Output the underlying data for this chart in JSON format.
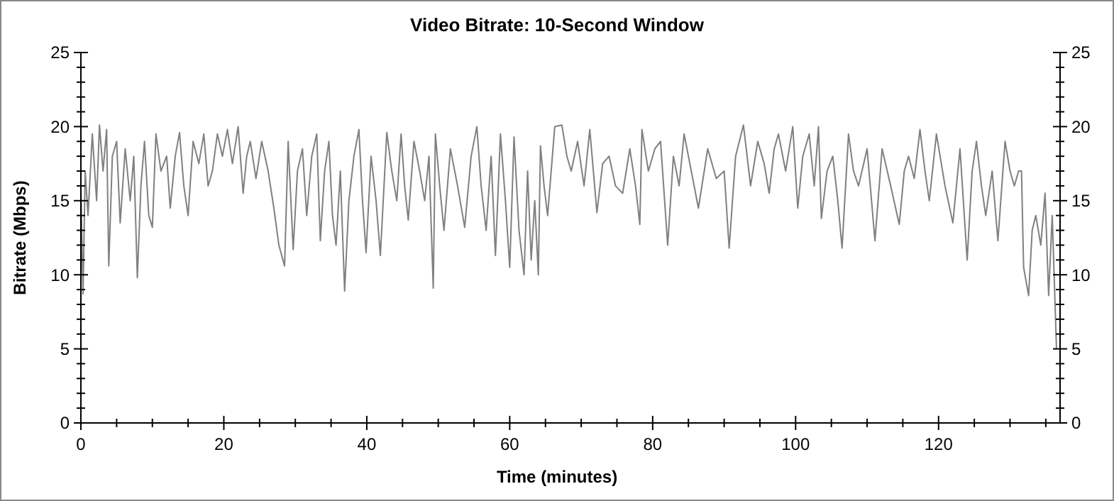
{
  "chart_data": {
    "type": "line",
    "title": "Video Bitrate: 10-Second Window",
    "xlabel": "Time (minutes)",
    "ylabel": "Bitrate (Mbps)",
    "xlim": [
      0,
      137
    ],
    "ylim": [
      0,
      25
    ],
    "y2lim": [
      0,
      25
    ],
    "xticks": [
      0,
      {
        "value": 5,
        "label": null
      },
      {
        "value": 10,
        "label": null
      },
      {
        "value": 15,
        "label": null
      },
      20,
      {
        "value": 25,
        "label": null
      },
      {
        "value": 30,
        "label": null
      },
      {
        "value": 35,
        "label": null
      },
      40,
      {
        "value": 45,
        "label": null
      },
      {
        "value": 50,
        "label": null
      },
      {
        "value": 55,
        "label": null
      },
      60,
      {
        "value": 65,
        "label": null
      },
      {
        "value": 70,
        "label": null
      },
      {
        "value": 75,
        "label": null
      },
      80,
      {
        "value": 85,
        "label": null
      },
      {
        "value": 90,
        "label": null
      },
      {
        "value": 95,
        "label": null
      },
      100,
      {
        "value": 105,
        "label": null
      },
      {
        "value": 110,
        "label": null
      },
      {
        "value": 115,
        "label": null
      },
      120,
      {
        "value": 125,
        "label": null
      },
      {
        "value": 130,
        "label": null
      },
      {
        "value": 135,
        "label": null
      }
    ],
    "yticks": [
      0,
      {
        "value": 1,
        "label": null
      },
      {
        "value": 2,
        "label": null
      },
      {
        "value": 3,
        "label": null
      },
      {
        "value": 4,
        "label": null
      },
      5,
      {
        "value": 6,
        "label": null
      },
      {
        "value": 7,
        "label": null
      },
      {
        "value": 8,
        "label": null
      },
      {
        "value": 9,
        "label": null
      },
      10,
      {
        "value": 11,
        "label": null
      },
      {
        "value": 12,
        "label": null
      },
      {
        "value": 13,
        "label": null
      },
      {
        "value": 14,
        "label": null
      },
      15,
      {
        "value": 16,
        "label": null
      },
      {
        "value": 17,
        "label": null
      },
      {
        "value": 18,
        "label": null
      },
      {
        "value": 19,
        "label": null
      },
      20,
      {
        "value": 21,
        "label": null
      },
      {
        "value": 22,
        "label": null
      },
      {
        "value": 23,
        "label": null
      },
      {
        "value": 24,
        "label": null
      },
      25
    ],
    "y2ticks": [
      0,
      {
        "value": 1,
        "label": null
      },
      {
        "value": 2,
        "label": null
      },
      {
        "value": 3,
        "label": null
      },
      {
        "value": 4,
        "label": null
      },
      5,
      {
        "value": 6,
        "label": null
      },
      {
        "value": 7,
        "label": null
      },
      {
        "value": 8,
        "label": null
      },
      {
        "value": 9,
        "label": null
      },
      10,
      {
        "value": 11,
        "label": null
      },
      {
        "value": 12,
        "label": null
      },
      {
        "value": 13,
        "label": null
      },
      {
        "value": 14,
        "label": null
      },
      15,
      {
        "value": 16,
        "label": null
      },
      {
        "value": 17,
        "label": null
      },
      {
        "value": 18,
        "label": null
      },
      {
        "value": 19,
        "label": null
      },
      20,
      {
        "value": 21,
        "label": null
      },
      {
        "value": 22,
        "label": null
      },
      {
        "value": 23,
        "label": null
      },
      {
        "value": 24,
        "label": null
      },
      25
    ],
    "grid": false,
    "marker": "none",
    "line_style": "solid",
    "series": [
      {
        "color": "#808080",
        "x": [
          0,
          0.3,
          0.6,
          1,
          1.6,
          2.2,
          2.6,
          3.1,
          3.6,
          3.9,
          4.4,
          5,
          5.5,
          6.2,
          6.9,
          7.4,
          7.9,
          8.4,
          8.9,
          9.5,
          10,
          10.5,
          11.2,
          12,
          12.5,
          13.2,
          13.8,
          14.4,
          15,
          15.7,
          16.5,
          17.2,
          17.8,
          18.4,
          19.1,
          19.8,
          20.5,
          21.2,
          22,
          22.7,
          23.2,
          23.7,
          24.5,
          25.3,
          26.2,
          27,
          27.7,
          28.5,
          29,
          29.7,
          30.3,
          31,
          31.6,
          32.3,
          33,
          33.5,
          34.1,
          34.7,
          35.2,
          35.7,
          36.3,
          36.9,
          37.5,
          38.2,
          38.9,
          39.4,
          39.9,
          40.6,
          41.3,
          41.9,
          42.8,
          43.5,
          44.2,
          44.8,
          45.3,
          45.8,
          46.6,
          47.4,
          48.1,
          48.7,
          49.3,
          49.6,
          50.2,
          50.8,
          51.7,
          52.7,
          53.7,
          54.6,
          55.4,
          56,
          56.7,
          57.4,
          58,
          58.7,
          59.4,
          60,
          60.6,
          61.3,
          62,
          62.5,
          63,
          63.5,
          64,
          64.3,
          64.8,
          65.3,
          66.3,
          67.3,
          68,
          68.6,
          69.5,
          70.4,
          71.2,
          72.2,
          73,
          73.9,
          74.8,
          75.8,
          76.8,
          77.6,
          78.2,
          78.5,
          79.4,
          80.3,
          81.1,
          82.1,
          82.9,
          83.7,
          84.4,
          85.4,
          86.4,
          87.7,
          88.9,
          90,
          90.7,
          91.6,
          92.7,
          93.7,
          94.7,
          95.6,
          96.3,
          97,
          97.6,
          98.6,
          99.6,
          100.3,
          101,
          101.9,
          102.6,
          103.2,
          103.6,
          104.4,
          105.2,
          105.9,
          106.5,
          107.4,
          108.1,
          108.8,
          110,
          111.1,
          112.1,
          113.3,
          114.5,
          115.2,
          115.8,
          116.6,
          117.4,
          118.1,
          118.7,
          119.7,
          120.9,
          122,
          123,
          124,
          124.7,
          125.3,
          126,
          126.6,
          127.5,
          128.3,
          129.3,
          130,
          130.6,
          131.2,
          131.6,
          131.9,
          132.6,
          133.1,
          133.6,
          134.3,
          134.9,
          135.4,
          135.9,
          136.5
        ],
        "values": [
          16,
          8.7,
          17,
          14,
          19.5,
          15,
          20.1,
          17,
          19.8,
          10.6,
          18,
          19,
          13.5,
          18.5,
          15,
          18,
          9.8,
          16,
          19,
          14,
          13.2,
          19.5,
          17,
          18,
          14.5,
          18,
          19.6,
          16,
          14,
          19,
          17.5,
          19.5,
          16,
          17,
          19.5,
          18,
          19.8,
          17.5,
          20,
          15.5,
          18,
          19,
          16.5,
          19,
          17,
          14.5,
          12,
          10.6,
          19,
          11.7,
          17,
          18.5,
          14,
          18,
          19.5,
          12.3,
          17,
          19,
          14,
          12,
          17,
          8.9,
          15,
          18,
          19.8,
          15,
          11.5,
          18,
          15,
          11.3,
          19.6,
          17,
          15,
          19.5,
          16,
          13.7,
          19,
          17,
          15,
          18,
          9.1,
          19.5,
          16,
          13,
          18.5,
          16,
          13.2,
          18,
          20,
          16,
          13,
          18,
          11.3,
          19.5,
          15,
          10.5,
          19.3,
          13,
          10,
          17,
          11,
          15,
          10,
          18.7,
          16,
          14,
          20,
          20.1,
          18,
          17,
          19,
          16,
          19.8,
          14.2,
          17.5,
          18,
          16,
          15.5,
          18.5,
          16,
          13.4,
          19.8,
          17,
          18.5,
          19,
          12,
          18,
          16,
          19.5,
          17,
          14.5,
          18.5,
          16.5,
          17,
          11.8,
          18,
          20.1,
          16,
          19,
          17.5,
          15.5,
          18.5,
          19.5,
          17,
          20,
          14.5,
          18,
          19.5,
          16,
          20,
          13.8,
          17,
          18,
          15,
          11.8,
          19.5,
          17,
          16,
          18.5,
          12.3,
          18.5,
          16,
          13.4,
          17,
          18,
          16.5,
          19.8,
          17,
          15,
          19.5,
          16,
          13.5,
          18.5,
          11,
          17,
          19,
          16,
          14,
          17,
          12.3,
          19,
          17,
          16,
          17,
          17,
          10.5,
          8.6,
          13,
          14,
          12,
          15.5,
          8.6,
          14,
          5
        ]
      }
    ]
  }
}
